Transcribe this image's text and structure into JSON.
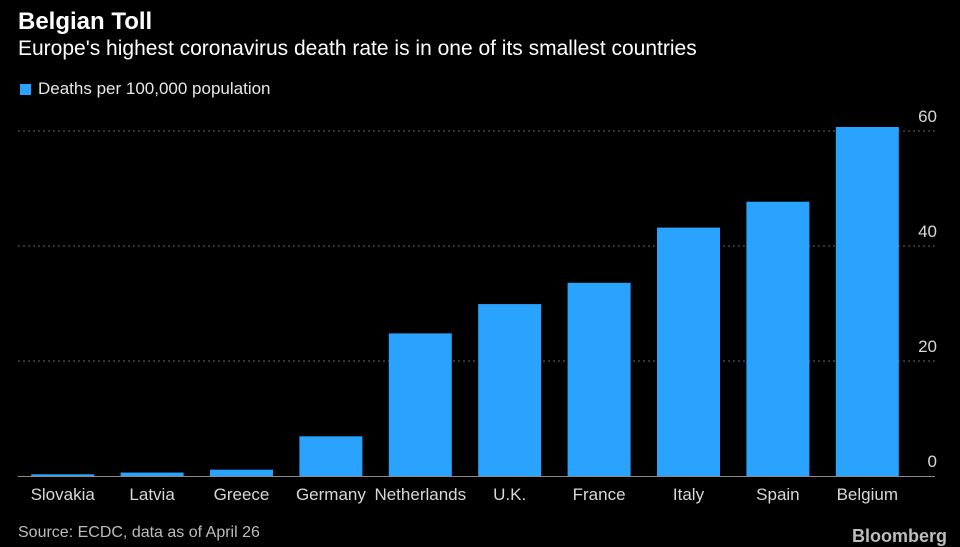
{
  "header": {
    "title": "Belgian Toll",
    "subtitle": "Europe's highest coronavirus death rate is in one of its smallest countries"
  },
  "footer": {
    "source": "Source: ECDC, data as of April 26",
    "brand": "Bloomberg"
  },
  "colors": {
    "background": "#000000",
    "bar": "#2aa3ff",
    "text": "#ffffff",
    "grid": "#666666"
  },
  "chart_data": {
    "type": "bar",
    "title": "",
    "xlabel": "",
    "ylabel": "",
    "categories": [
      "Slovakia",
      "Latvia",
      "Greece",
      "Germany",
      "Netherlands",
      "U.K.",
      "France",
      "Italy",
      "Spain",
      "Belgium"
    ],
    "series": [
      {
        "name": "Deaths per 100,000 population",
        "values": [
          0.3,
          0.6,
          1.1,
          6.9,
          24.8,
          29.9,
          33.6,
          43.2,
          47.7,
          60.7
        ]
      }
    ],
    "ylim": [
      0,
      60
    ],
    "yticks": [
      0,
      20,
      40,
      60
    ],
    "y_axis_side": "right",
    "grid": true,
    "legend_position": "top-left"
  }
}
